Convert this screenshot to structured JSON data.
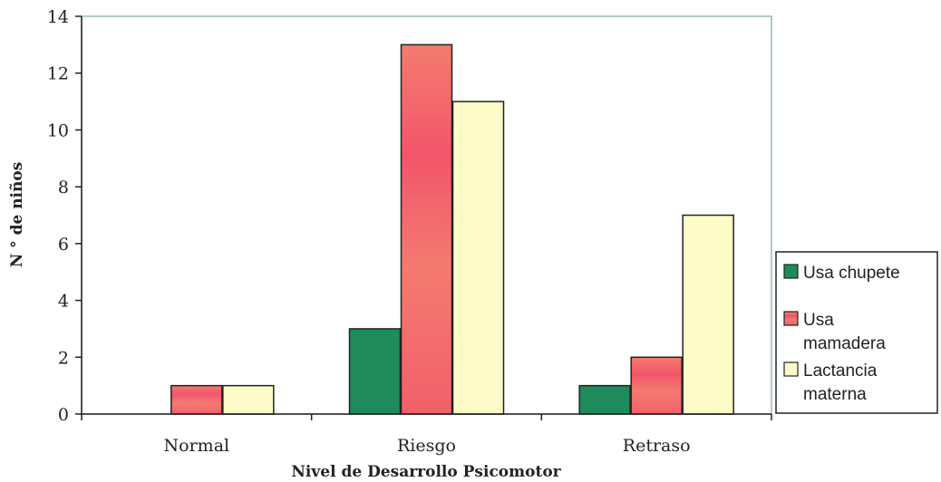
{
  "chart_data": {
    "type": "bar",
    "title": "",
    "xlabel": "Nivel de Desarrollo Psicomotor",
    "ylabel": "N ° de niños",
    "categories": [
      "Normal",
      "Riesgo",
      "Retraso"
    ],
    "ylim": [
      0,
      14
    ],
    "yticks": [
      0,
      2,
      4,
      6,
      8,
      10,
      12,
      14
    ],
    "grid": false,
    "legend_position": "right",
    "series": [
      {
        "name": "Usa chupete",
        "values": [
          0,
          3,
          1
        ],
        "color": "#1f8a5c"
      },
      {
        "name": "Usa mamadera",
        "values": [
          1,
          13,
          2
        ],
        "color": "#f06a6a"
      },
      {
        "name": "Lactancia materna",
        "values": [
          1,
          11,
          7
        ],
        "color": "#fdfbc8"
      }
    ],
    "legend_lines": [
      [
        "Usa chupete"
      ],
      [
        "Usa",
        "mamadera"
      ],
      [
        "Lactancia",
        "materna"
      ]
    ]
  }
}
